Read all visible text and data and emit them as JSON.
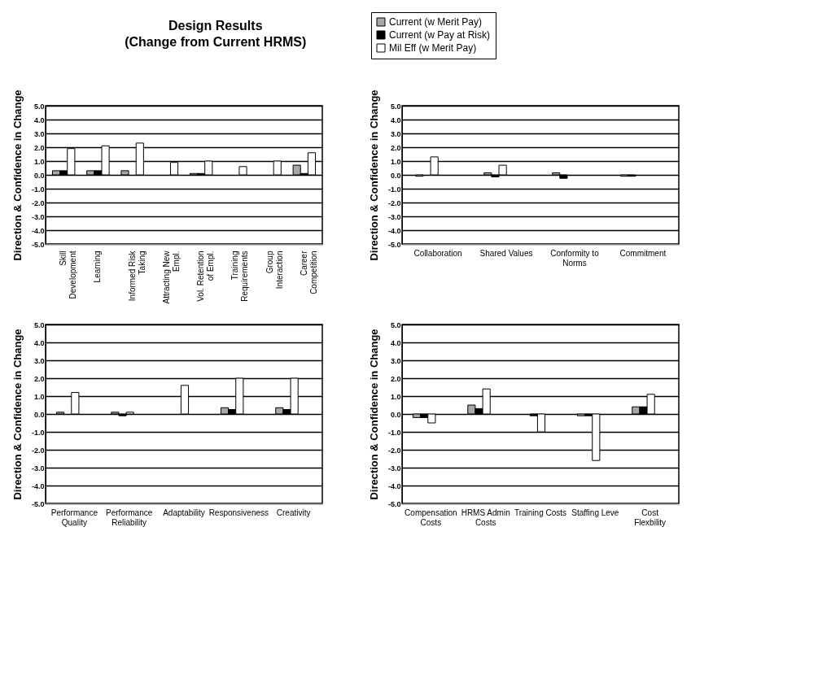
{
  "chart_data": [
    {
      "type": "bar",
      "title": [
        "Design Results",
        "(Change from Current HRMS)"
      ],
      "ylabel": "Direction & Confidence in Change",
      "categories": [
        "Skill Development",
        "Learning",
        "Informed Risk Taking",
        "Attracting New Empl.",
        "Vol. Retention of Empl.",
        "Training Requirements",
        "Group Interaction",
        "Career Competition"
      ],
      "series": [
        {
          "name": "Current (w Merit Pay)",
          "color": "#a8a8a8",
          "values": [
            0.3,
            0.3,
            0.3,
            0,
            0.1,
            0,
            0,
            0.7
          ]
        },
        {
          "name": "Current (w Pay at Risk)",
          "color": "#000000",
          "values": [
            0.3,
            0.3,
            0,
            0,
            0.1,
            0,
            0,
            0.1
          ]
        },
        {
          "name": "Mil Eff (w Merit Pay)",
          "color": "#ffffff",
          "values": [
            1.9,
            2.1,
            2.3,
            0.9,
            1.0,
            0.6,
            1.0,
            1.6
          ]
        }
      ],
      "ylim": [
        -5,
        5
      ],
      "yticks": [
        {
          "value": -5,
          "label": "-5.0"
        },
        {
          "value": -4,
          "label": "-4.0"
        },
        {
          "value": -3,
          "label": "-3.0"
        },
        {
          "value": -2,
          "label": "-2.0"
        },
        {
          "value": -1,
          "label": "-1.0"
        },
        {
          "value": 0,
          "label": "0.0"
        },
        {
          "value": 1,
          "label": "1.0"
        },
        {
          "value": 2,
          "label": "2.0"
        },
        {
          "value": 3,
          "label": "3.0"
        },
        {
          "value": 4,
          "label": "4.0"
        },
        {
          "value": 5,
          "label": "5.0"
        }
      ],
      "grid": "y",
      "legend": "top right"
    },
    {
      "type": "bar",
      "ylabel": "Direction & Confidence in Change",
      "categories": [
        "Collaboration",
        "Shared Values",
        "Conformity to Norms",
        "Commitment"
      ],
      "series": [
        {
          "name": "Current (w Merit Pay)",
          "color": "#a8a8a8",
          "values": [
            -0.1,
            0.15,
            0.15,
            -0.1
          ]
        },
        {
          "name": "Current (w Pay at Risk)",
          "color": "#000000",
          "values": [
            0,
            -0.15,
            -0.25,
            -0.1
          ]
        },
        {
          "name": "Mil Eff (w Merit Pay)",
          "color": "#ffffff",
          "values": [
            1.3,
            0.7,
            0,
            0
          ]
        }
      ],
      "ylim": [
        -5,
        5
      ],
      "yticks": [
        {
          "value": -5,
          "label": "-5.0"
        },
        {
          "value": -4,
          "label": "-4.0"
        },
        {
          "value": -3,
          "label": "-3.0"
        },
        {
          "value": -2,
          "label": "-2.0"
        },
        {
          "value": -1,
          "label": "-1.0"
        },
        {
          "value": 0,
          "label": "0.0"
        },
        {
          "value": 1,
          "label": "1.0"
        },
        {
          "value": 2,
          "label": "2.0"
        },
        {
          "value": 3,
          "label": "3.0"
        },
        {
          "value": 4,
          "label": "4.0"
        },
        {
          "value": 5,
          "label": "5.0"
        }
      ],
      "grid": "y"
    },
    {
      "type": "bar",
      "ylabel": "Direction & Confidence in Change",
      "categories": [
        "Performance Quality",
        "Performance Reliability",
        "Adaptability",
        "Responsiveness",
        "Creativity"
      ],
      "series": [
        {
          "name": "Current (w Merit Pay)",
          "color": "#a8a8a8",
          "values": [
            0.1,
            0.1,
            0,
            0.35,
            0.35
          ]
        },
        {
          "name": "Current (w Pay at Risk)",
          "color": "#000000",
          "values": [
            0,
            -0.1,
            0,
            0.25,
            0.25
          ]
        },
        {
          "name": "Mil Eff (w Merit Pay)",
          "color": "#ffffff",
          "values": [
            1.2,
            0.1,
            1.6,
            2.0,
            2.0
          ]
        }
      ],
      "ylim": [
        -5,
        5
      ],
      "yticks": [
        {
          "value": -5,
          "label": "-5.0"
        },
        {
          "value": -4,
          "label": "-4.0"
        },
        {
          "value": -3,
          "label": "-3.0"
        },
        {
          "value": -2,
          "label": "-2.0"
        },
        {
          "value": -1,
          "label": "-1.0"
        },
        {
          "value": 0,
          "label": "0.0"
        },
        {
          "value": 1,
          "label": "1.0"
        },
        {
          "value": 2,
          "label": "2.0"
        },
        {
          "value": 3,
          "label": "3.0"
        },
        {
          "value": 4,
          "label": "4.0"
        },
        {
          "value": 5,
          "label": "5.0"
        }
      ],
      "grid": "y"
    },
    {
      "type": "bar",
      "ylabel": "Direction & Confidence in Change",
      "categories": [
        "Compensation Costs",
        "HRMS Admin Costs",
        "Training Costs",
        "Staffing Leve",
        "Cost Flexbility"
      ],
      "series": [
        {
          "name": "Current (w Merit Pay)",
          "color": "#a8a8a8",
          "values": [
            -0.2,
            0.5,
            0,
            -0.1,
            0.4
          ]
        },
        {
          "name": "Current (w Pay at Risk)",
          "color": "#000000",
          "values": [
            -0.2,
            0.3,
            -0.1,
            -0.1,
            0.4
          ]
        },
        {
          "name": "Mil Eff (w Merit Pay)",
          "color": "#ffffff",
          "values": [
            -0.5,
            1.4,
            -1.0,
            -2.6,
            1.1
          ]
        }
      ],
      "ylim": [
        -5,
        5
      ],
      "yticks": [
        {
          "value": -5,
          "label": "-5.0"
        },
        {
          "value": -4,
          "label": "-4.0"
        },
        {
          "value": -3,
          "label": "-3.0"
        },
        {
          "value": -2,
          "label": "-2.0"
        },
        {
          "value": -1,
          "label": "-1.0"
        },
        {
          "value": 0,
          "label": "0.0"
        },
        {
          "value": 1,
          "label": "1.0"
        },
        {
          "value": 2,
          "label": "2.0"
        },
        {
          "value": 3,
          "label": "3.0"
        },
        {
          "value": 4,
          "label": "4.0"
        },
        {
          "value": 5,
          "label": "5.0"
        }
      ],
      "grid": "y"
    }
  ]
}
